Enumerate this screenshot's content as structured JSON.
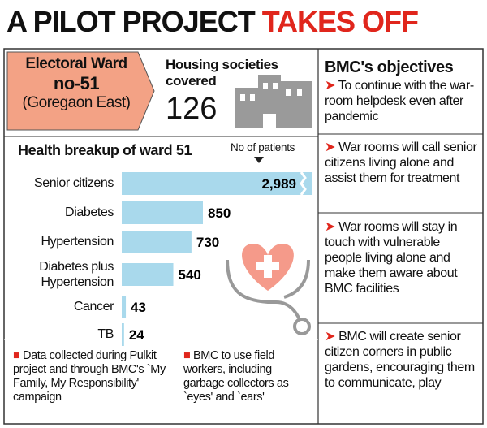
{
  "title_parts": [
    "A PILOT PROJECT",
    "TAKES OFF"
  ],
  "ward": {
    "line1": "Electoral Ward",
    "line2": "no-51",
    "line3": "(Goregaon East)"
  },
  "housing": {
    "label": "Housing societies covered",
    "value": 126
  },
  "chart_data": {
    "type": "bar",
    "orientation": "horizontal",
    "title": "Health breakup of ward 51",
    "value_axis_label": "No of patients",
    "categories": [
      "Senior citizens",
      "Diabetes",
      "Hypertension",
      "Diabetes plus Hypertension",
      "Cancer",
      "TB"
    ],
    "values": [
      2989,
      850,
      730,
      540,
      43,
      24
    ],
    "value_labels": [
      "2,989",
      "850",
      "730",
      "540",
      "43",
      "24"
    ],
    "color": "#a9d9ec"
  },
  "notes": [
    "Data collected during Pulkit project and through BMC's `My Family, My Responsibility' campaign",
    "BMC to use field workers, including garbage collectors as `eyes' and `ears'"
  ],
  "objectives": {
    "title": "BMC's objectives",
    "items": [
      "To continue with the war-room helpdesk even after pandemic",
      "War rooms will call senior citizens living alone and assist them for treatment",
      "War rooms will stay in touch with vulnerable people living alone and make them aware about BMC facilities",
      "BMC will create senior citizen corners in public gardens, encouraging them to communicate, play"
    ]
  }
}
